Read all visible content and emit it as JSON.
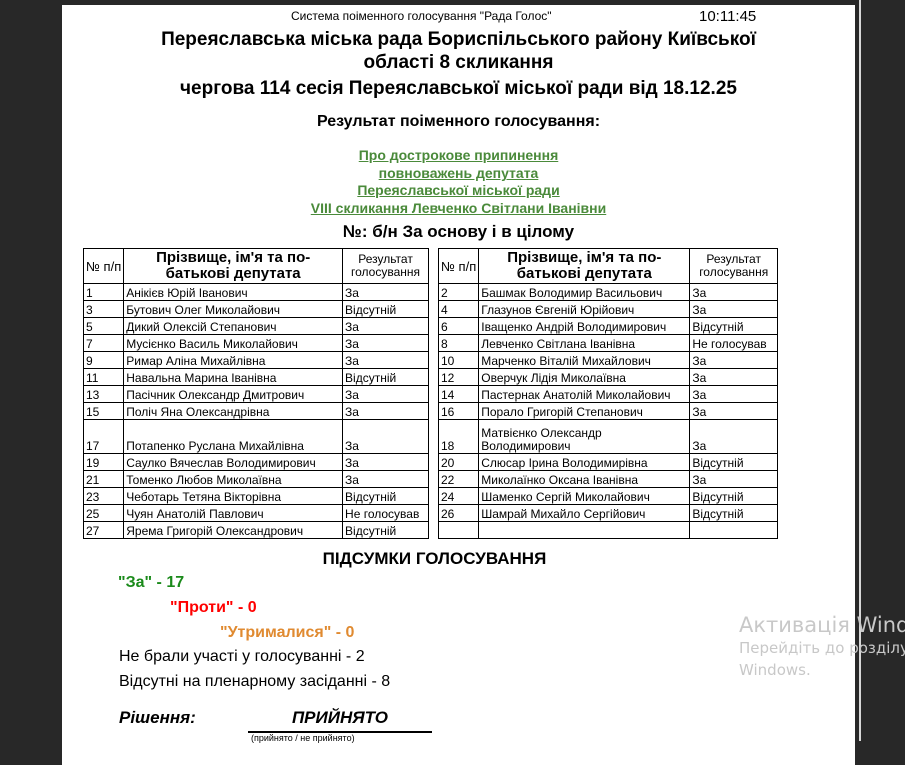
{
  "header": {
    "system": "Система поіменного голосування \"Рада Голос\"",
    "time": "10:11:45",
    "title_line1": "Переяславська міська рада Бориспільського району Київської",
    "title_line2": "області 8 скликання",
    "session": "чергова 114 сесія  Переяславської міської ради від 18.12.25",
    "result_heading": "Результат поіменного голосування:"
  },
  "subject": [
    "Про дострокове припинення",
    "повноважень депутата",
    "Переяславської міської ради",
    "VIII скликання Левченко Світлани Іванівни"
  ],
  "number": "№: б/н  За основу і в цілому",
  "columns": {
    "num": "№ п/п",
    "name": "Прізвище, ім'я та по-батькові депутата",
    "result": "Результат голосування"
  },
  "left_rows": [
    [
      "1",
      "Анікієв Юрій Іванович",
      "За"
    ],
    [
      "3",
      "Бутович Олег Миколайович",
      "Відсутній"
    ],
    [
      "5",
      "Дикий Олексій Степанович",
      "За"
    ],
    [
      "7",
      "Мусієнко Василь Миколайович",
      "За"
    ],
    [
      "9",
      "Римар Аліна Михайлівна",
      "За"
    ],
    [
      "11",
      "Навальна Марина Іванівна",
      "Відсутній"
    ],
    [
      "13",
      "Пасічник Олександр Дмитрович",
      "За"
    ],
    [
      "15",
      "Поліч Яна Олександрівна",
      "За"
    ],
    [
      "17",
      "Потапенко Руслана Михайлівна",
      "За"
    ],
    [
      "19",
      "Саулко Вячеслав Володимирович",
      "За"
    ],
    [
      "21",
      "Томенко Любов Миколаївна",
      "За"
    ],
    [
      "23",
      "Чеботарь Тетяна Вікторівна",
      "Відсутній"
    ],
    [
      "25",
      "Чуян Анатолій Павлович",
      "Не голосував"
    ],
    [
      "27",
      "Ярема Григорій Олександрович",
      "Відсутній"
    ]
  ],
  "right_rows": [
    [
      "2",
      "Башмак Володимир Васильович",
      "За"
    ],
    [
      "4",
      "Глазунов Євгеній Юрійович",
      "За"
    ],
    [
      "6",
      "Іващенко Андрій Володимирович",
      "Відсутній"
    ],
    [
      "8",
      "Левченко Світлана Іванівна",
      "Не голосував"
    ],
    [
      "10",
      "Марченко Віталій Михайлович",
      "За"
    ],
    [
      "12",
      "Оверчук Лідія Миколаївна",
      "За"
    ],
    [
      "14",
      "Пастернак Анатолій Миколайович",
      "За"
    ],
    [
      "16",
      "Порало Григорій Степанович",
      "За"
    ],
    [
      "18",
      "Матвієнко Олександр Володимирович",
      "За"
    ],
    [
      "20",
      "Слюсар Ірина Володимирівна",
      "Відсутній"
    ],
    [
      "22",
      "Миколаїнко Оксана Іванівна",
      "За"
    ],
    [
      "24",
      "Шаменко Сергій Миколайович",
      "Відсутній"
    ],
    [
      "26",
      "Шамрай Михайло Сергійович",
      "Відсутній"
    ],
    [
      "",
      "",
      ""
    ]
  ],
  "summary": {
    "heading": "ПІДСУМКИ ГОЛОСУВАННЯ",
    "za": "\"За\" - 17",
    "proty": "\"Проти\" - 0",
    "utrym": "\"Утрималися\" - 0",
    "not_voted": "Не брали участі у голосуванні - 2",
    "absent": "Відсутні на пленарному засіданні - 8",
    "colors": {
      "za": "#1a8a1a",
      "proty": "#ff0000",
      "utrym": "#e08a30"
    }
  },
  "decision": {
    "label": "Рішення:",
    "value": "ПРИЙНЯТО",
    "caption": "(прийнято / не прийнято)"
  },
  "watermark": {
    "line1": "Активація Windows",
    "line2": "Перейдіть до розділу",
    "line3": "Windows."
  }
}
